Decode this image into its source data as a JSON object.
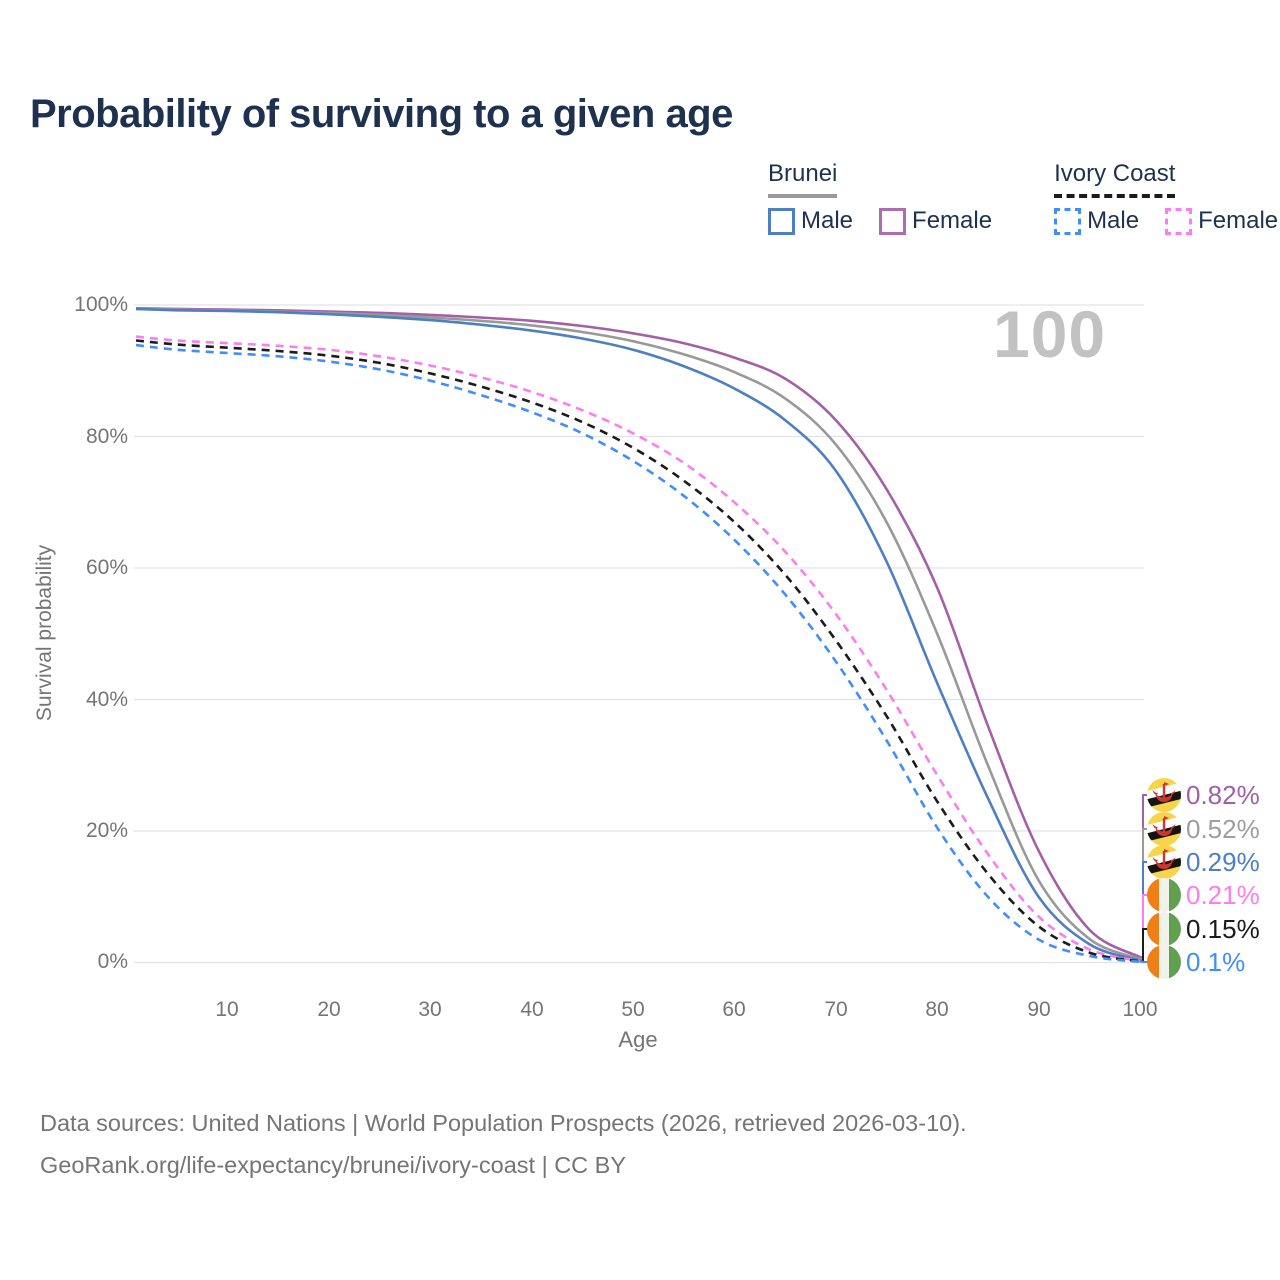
{
  "title": "Probability of surviving to a given age",
  "watermark": "100",
  "legend": {
    "groups": [
      {
        "label": "Brunei",
        "line_style": "solid",
        "underline_color": "#9b9b9b",
        "items": [
          {
            "label": "Male",
            "color": "#4D7FC4"
          },
          {
            "label": "Female",
            "color": "#AF6CB0"
          }
        ]
      },
      {
        "label": "Ivory Coast",
        "line_style": "dashed",
        "underline_color": "#1b1b1b",
        "items": [
          {
            "label": "Male",
            "color": "#3F8EFC"
          },
          {
            "label": "Female",
            "color": "#FD7CF0"
          }
        ]
      }
    ]
  },
  "axes": {
    "y_label": "Survival probability",
    "x_label": "Age",
    "y_ticks": [
      "100%",
      "80%",
      "60%",
      "40%",
      "20%",
      "0%"
    ],
    "x_ticks": [
      "10",
      "20",
      "30",
      "40",
      "50",
      "60",
      "70",
      "80",
      "90",
      "100"
    ]
  },
  "end_labels": {
    "items": [
      {
        "value": "0.82%",
        "color": "#A05FA8",
        "flag": "brunei"
      },
      {
        "value": "0.52%",
        "color": "#9E9E9E",
        "flag": "brunei"
      },
      {
        "value": "0.29%",
        "color": "#4D7FC4",
        "flag": "brunei"
      },
      {
        "value": "0.21%",
        "color": "#FD7CF0",
        "flag": "ivory-coast"
      },
      {
        "value": "0.15%",
        "color": "#1B1B1B",
        "flag": "ivory-coast"
      },
      {
        "value": "0.1%",
        "color": "#3F8EFC",
        "flag": "ivory-coast"
      }
    ]
  },
  "footer": {
    "line1": "Data sources: United Nations | World Population Prospects (2026, retrieved 2026-03-10).",
    "line2": "GeoRank.org/life-expectancy/brunei/ivory-coast | CC BY"
  },
  "colors": {
    "title_text": "#1e3250",
    "axis_text": "#757575",
    "grid": "#e3e3e3",
    "watermark": "#c2c2c2"
  },
  "chart_data": {
    "type": "line",
    "title": "Probability of surviving to a given age",
    "xlabel": "Age",
    "ylabel": "Survival probability",
    "xlim": [
      1,
      100
    ],
    "ylim": [
      0,
      100
    ],
    "grid_percents": [
      0,
      20,
      40,
      60,
      80,
      100
    ],
    "x": [
      1,
      5,
      10,
      15,
      20,
      25,
      30,
      35,
      40,
      45,
      50,
      55,
      60,
      65,
      70,
      75,
      80,
      85,
      90,
      95,
      100
    ],
    "series": [
      {
        "name": "Brunei female",
        "color": "#A45FA6",
        "dash": false,
        "values": [
          99.5,
          99.4,
          99.3,
          99.2,
          99.0,
          98.8,
          98.5,
          98.1,
          97.6,
          96.8,
          95.7,
          94.2,
          92.0,
          88.8,
          82.5,
          72.0,
          57.0,
          36.0,
          17.0,
          5.0,
          0.82
        ]
      },
      {
        "name": "Brunei all",
        "color": "#999999",
        "dash": false,
        "values": [
          99.4,
          99.3,
          99.2,
          99.0,
          98.8,
          98.5,
          98.1,
          97.6,
          96.9,
          95.9,
          94.5,
          92.5,
          89.8,
          85.8,
          78.8,
          67.0,
          50.0,
          30.0,
          12.5,
          3.6,
          0.52
        ]
      },
      {
        "name": "Brunei male",
        "color": "#4D7FC4",
        "dash": false,
        "values": [
          99.4,
          99.2,
          99.1,
          98.9,
          98.6,
          98.2,
          97.7,
          97.0,
          96.1,
          94.9,
          93.2,
          90.7,
          87.3,
          82.5,
          74.8,
          61.0,
          42.5,
          25.0,
          10.0,
          2.8,
          0.29
        ]
      },
      {
        "name": "Ivory Coast female",
        "color": "#FD7CF0",
        "dash": true,
        "values": [
          95.2,
          94.6,
          94.2,
          93.8,
          93.2,
          92.2,
          90.8,
          89.0,
          86.8,
          84.0,
          80.5,
          76.0,
          70.0,
          62.5,
          53.0,
          41.5,
          28.5,
          16.5,
          7.0,
          2.0,
          0.21
        ]
      },
      {
        "name": "Ivory Coast all",
        "color": "#1B1B1B",
        "dash": true,
        "values": [
          94.6,
          94.0,
          93.5,
          93.0,
          92.3,
          91.2,
          89.6,
          87.6,
          85.2,
          82.2,
          78.3,
          73.3,
          67.0,
          59.0,
          49.0,
          37.5,
          24.5,
          13.5,
          5.5,
          1.5,
          0.15
        ]
      },
      {
        "name": "Ivory Coast male",
        "color": "#3F8EFC",
        "dash": true,
        "values": [
          93.9,
          93.2,
          92.7,
          92.2,
          91.4,
          90.2,
          88.5,
          86.3,
          83.7,
          80.5,
          76.3,
          71.0,
          64.3,
          56.0,
          45.8,
          33.8,
          20.5,
          10.0,
          3.5,
          1.0,
          0.1
        ]
      }
    ]
  }
}
